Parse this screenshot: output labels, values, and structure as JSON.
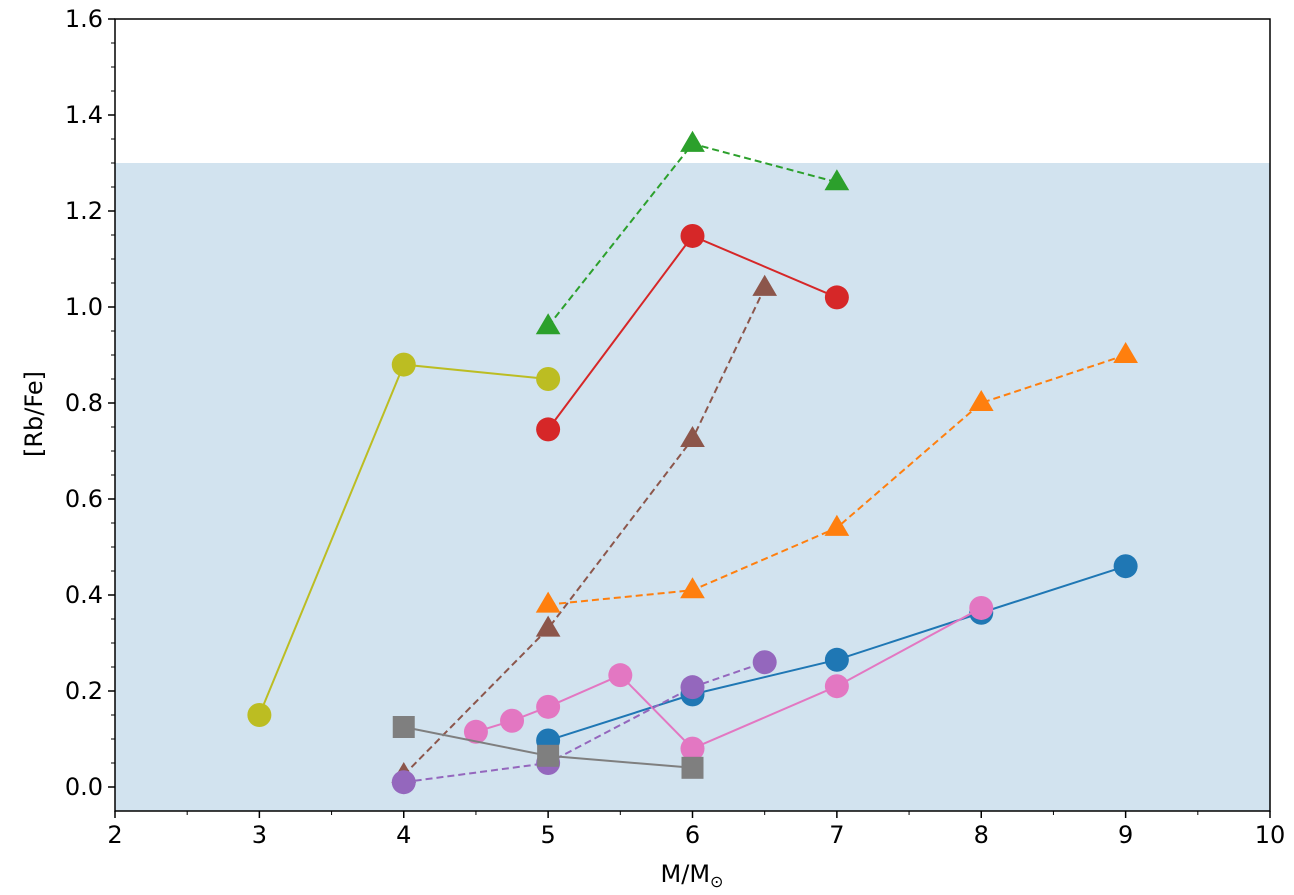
{
  "chart_data": {
    "type": "line",
    "title": "",
    "xlabel": "M/M",
    "xlabel_subscript": "⊙",
    "ylabel": "[Rb/Fe]",
    "xlim": [
      2,
      10
    ],
    "ylim": [
      -0.05,
      1.6
    ],
    "xticks": [
      2,
      3,
      4,
      5,
      6,
      7,
      8,
      9,
      10
    ],
    "yticks": [
      0.0,
      0.2,
      0.4,
      0.6,
      0.8,
      1.0,
      1.2,
      1.4,
      1.6
    ],
    "xtick_labels": [
      "2",
      "3",
      "4",
      "5",
      "6",
      "7",
      "8",
      "9",
      "10"
    ],
    "ytick_labels": [
      "0.0",
      "0.2",
      "0.4",
      "0.6",
      "0.8",
      "1.0",
      "1.2",
      "1.4",
      "1.6"
    ],
    "grid": false,
    "shaded_band": {
      "y_min": -0.05,
      "y_max": 1.3,
      "color": "#d2e3ef"
    },
    "series": [
      {
        "color": "#bcbd22",
        "marker": "circle",
        "line": "solid",
        "x": [
          3,
          4,
          5
        ],
        "y": [
          0.15,
          0.88,
          0.85
        ]
      },
      {
        "color": "#d62728",
        "marker": "circle",
        "line": "solid",
        "x": [
          5,
          6,
          7
        ],
        "y": [
          0.745,
          1.148,
          1.02
        ]
      },
      {
        "color": "#2ca02c",
        "marker": "triangle",
        "line": "dashed",
        "x": [
          5,
          6,
          7
        ],
        "y": [
          0.96,
          1.34,
          1.26
        ]
      },
      {
        "color": "#8c564b",
        "marker": "triangle",
        "line": "dashed",
        "x": [
          4,
          5,
          6,
          6.5
        ],
        "y": [
          0.025,
          0.33,
          0.725,
          1.04
        ]
      },
      {
        "color": "#ff7f0e",
        "marker": "triangle",
        "line": "dashed",
        "x": [
          5,
          6,
          7,
          8,
          9
        ],
        "y": [
          0.38,
          0.41,
          0.54,
          0.8,
          0.9
        ]
      },
      {
        "color": "#1f77b4",
        "marker": "circle",
        "line": "solid",
        "x": [
          5,
          6,
          7,
          8,
          9
        ],
        "y": [
          0.097,
          0.193,
          0.265,
          0.363,
          0.46
        ]
      },
      {
        "color": "#e377c2",
        "marker": "circle",
        "line": "solid",
        "x": [
          4.5,
          4.75,
          5,
          5.5,
          6,
          7,
          8
        ],
        "y": [
          0.115,
          0.138,
          0.167,
          0.233,
          0.08,
          0.21,
          0.373
        ]
      },
      {
        "color": "#9467bd",
        "marker": "circle",
        "line": "dashed",
        "x": [
          4,
          5,
          6,
          6.5
        ],
        "y": [
          0.01,
          0.05,
          0.208,
          0.26
        ]
      },
      {
        "color": "#7f7f7f",
        "marker": "square",
        "line": "solid",
        "x": [
          4,
          5,
          6
        ],
        "y": [
          0.125,
          0.065,
          0.04
        ]
      }
    ]
  }
}
